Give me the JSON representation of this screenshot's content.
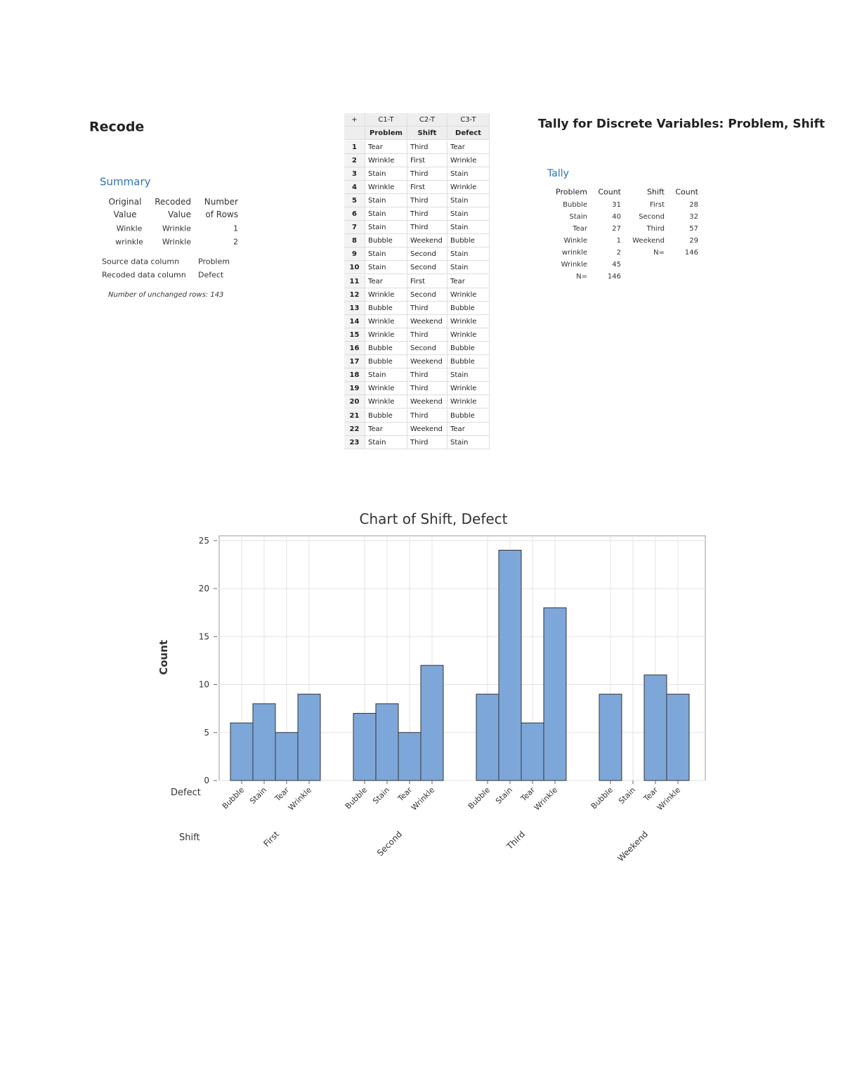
{
  "recode": {
    "title": "Recode",
    "summary": {
      "title": "Summary",
      "header": [
        [
          "Original",
          "Value"
        ],
        [
          "Recoded",
          "Value"
        ],
        [
          "Number",
          "of Rows"
        ]
      ],
      "rows": [
        [
          "Winkle",
          "Wrinkle",
          1
        ],
        [
          "wrinkle",
          "Wrinkle",
          2
        ]
      ],
      "columns": [
        [
          "Source data column",
          "Problem"
        ],
        [
          "Recoded data column",
          "Defect"
        ]
      ],
      "note": "Number of unchanged rows: 143"
    }
  },
  "worksheet": {
    "corner": "+",
    "column_ids": [
      "C1-T",
      "C2-T",
      "C3-T"
    ],
    "column_names": [
      "Problem",
      "Shift",
      "Defect"
    ],
    "rows": [
      [
        1,
        "Tear",
        "Third",
        "Tear"
      ],
      [
        2,
        "Wrinkle",
        "First",
        "Wrinkle"
      ],
      [
        3,
        "Stain",
        "Third",
        "Stain"
      ],
      [
        4,
        "Wrinkle",
        "First",
        "Wrinkle"
      ],
      [
        5,
        "Stain",
        "Third",
        "Stain"
      ],
      [
        6,
        "Stain",
        "Third",
        "Stain"
      ],
      [
        7,
        "Stain",
        "Third",
        "Stain"
      ],
      [
        8,
        "Bubble",
        "Weekend",
        "Bubble"
      ],
      [
        9,
        "Stain",
        "Second",
        "Stain"
      ],
      [
        10,
        "Stain",
        "Second",
        "Stain"
      ],
      [
        11,
        "Tear",
        "First",
        "Tear"
      ],
      [
        12,
        "Wrinkle",
        "Second",
        "Wrinkle"
      ],
      [
        13,
        "Bubble",
        "Third",
        "Bubble"
      ],
      [
        14,
        "Wrinkle",
        "Weekend",
        "Wrinkle"
      ],
      [
        15,
        "Wrinkle",
        "Third",
        "Wrinkle"
      ],
      [
        16,
        "Bubble",
        "Second",
        "Bubble"
      ],
      [
        17,
        "Bubble",
        "Weekend",
        "Bubble"
      ],
      [
        18,
        "Stain",
        "Third",
        "Stain"
      ],
      [
        19,
        "Wrinkle",
        "Third",
        "Wrinkle"
      ],
      [
        20,
        "Wrinkle",
        "Weekend",
        "Wrinkle"
      ],
      [
        21,
        "Bubble",
        "Third",
        "Bubble"
      ],
      [
        22,
        "Tear",
        "Weekend",
        "Tear"
      ],
      [
        23,
        "Stain",
        "Third",
        "Stain"
      ]
    ]
  },
  "tally": {
    "title": "Tally for Discrete Variables: Problem, Shift",
    "subtitle": "Tally",
    "problem": {
      "header": [
        "Problem",
        "Count"
      ],
      "rows": [
        [
          "Bubble",
          31
        ],
        [
          "Stain",
          40
        ],
        [
          "Tear",
          27
        ],
        [
          "Winkle",
          1
        ],
        [
          "wrinkle",
          2
        ],
        [
          "Wrinkle",
          45
        ],
        [
          "N=",
          146
        ]
      ]
    },
    "shift": {
      "header": [
        "Shift",
        "Count"
      ],
      "rows": [
        [
          "First",
          28
        ],
        [
          "Second",
          32
        ],
        [
          "Third",
          57
        ],
        [
          "Weekend",
          29
        ],
        [
          "N=",
          146
        ]
      ]
    }
  },
  "chart_data": {
    "type": "bar",
    "title": "Chart of Shift, Defect",
    "y_label": "Count",
    "category_label": "Defect",
    "group_label": "Shift",
    "categories": [
      "Bubble",
      "Stain",
      "Tear",
      "Wrinkle"
    ],
    "groups": [
      {
        "name": "First",
        "values": [
          6,
          8,
          5,
          9
        ]
      },
      {
        "name": "Second",
        "values": [
          7,
          8,
          5,
          12
        ]
      },
      {
        "name": "Third",
        "values": [
          9,
          24,
          6,
          18
        ]
      },
      {
        "name": "Weekend",
        "values": [
          9,
          0,
          11,
          9
        ]
      }
    ],
    "color": "#7da7d9",
    "ylim": [
      0,
      25.5
    ],
    "yticks": [
      0,
      5,
      10,
      15,
      20,
      25
    ],
    "grid": true
  }
}
